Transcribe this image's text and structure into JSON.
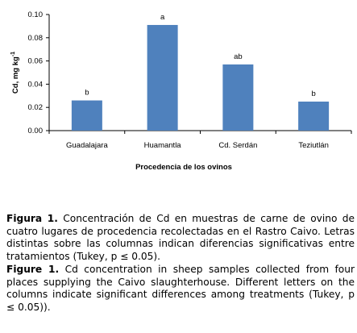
{
  "chart_data": {
    "type": "bar",
    "categories": [
      "Guadalajara",
      "Huamantla",
      "Cd. Serdán",
      "Teziutlán"
    ],
    "values": [
      0.026,
      0.091,
      0.057,
      0.025
    ],
    "letters": [
      "b",
      "a",
      "ab",
      "b"
    ],
    "xlabel": "Procedencia de los ovinos",
    "ylabel": "Cd, mg kg",
    "ylabel_sup": "-1",
    "ylim": [
      0,
      0.1
    ],
    "yticks": [
      "0.00",
      "0.02",
      "0.04",
      "0.06",
      "0.08",
      "0.10"
    ],
    "grid": false,
    "bar_color": "#4f81bd"
  },
  "captions": {
    "es": {
      "label": "Figura 1.",
      "text": "Concentración de Cd en muestras de carne de ovino de cuatro lugares de procedencia recolectadas en el Rastro Caivo. Letras distintas sobre las columnas indican diferencias significativas entre tratamientos (Tukey, p ≤ 0.05)."
    },
    "en": {
      "label": "Figure 1.",
      "text": "Cd concentration in sheep samples collected from four places supplying the Caivo slaughterhouse. Different letters on the columns indicate significant differences among treatments (Tukey, p ≤ 0.05))."
    }
  }
}
